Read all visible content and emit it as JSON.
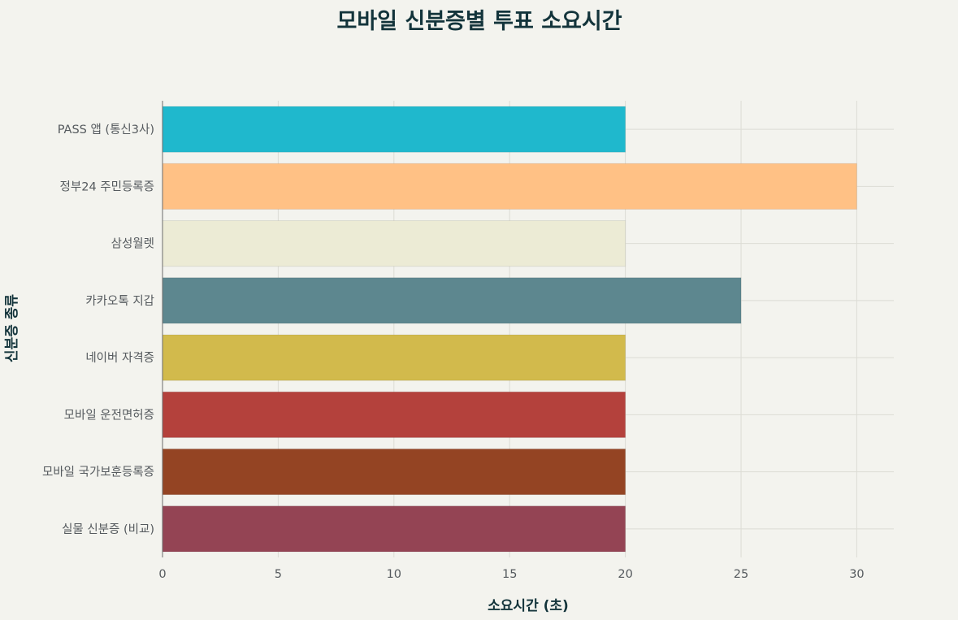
{
  "chart_data": {
    "type": "bar",
    "orientation": "horizontal",
    "title": "모바일 신분증별 투표 소요시간",
    "xlabel": "소요시간 (초)",
    "ylabel": "신분증 종류",
    "categories": [
      "PASS 앱 (통신3사)",
      "정부24 주민등록증",
      "삼성월렛",
      "카카오톡 지갑",
      "네이버 자격증",
      "모바일 운전면허증",
      "모바일 국가보훈등록증",
      "실물 신분증 (비교)"
    ],
    "values": [
      20,
      30,
      20,
      25,
      20,
      20,
      20,
      20
    ],
    "colors": [
      "#1fb8cd",
      "#ffc185",
      "#eceBd5",
      "#5d878f",
      "#d2ba4c",
      "#b4413c",
      "#944423",
      "#964325"
    ],
    "xlim": [
      0,
      31.6
    ],
    "xticks": [
      0,
      5,
      10,
      15,
      20,
      25,
      30
    ],
    "grid": true,
    "legend": "none"
  }
}
